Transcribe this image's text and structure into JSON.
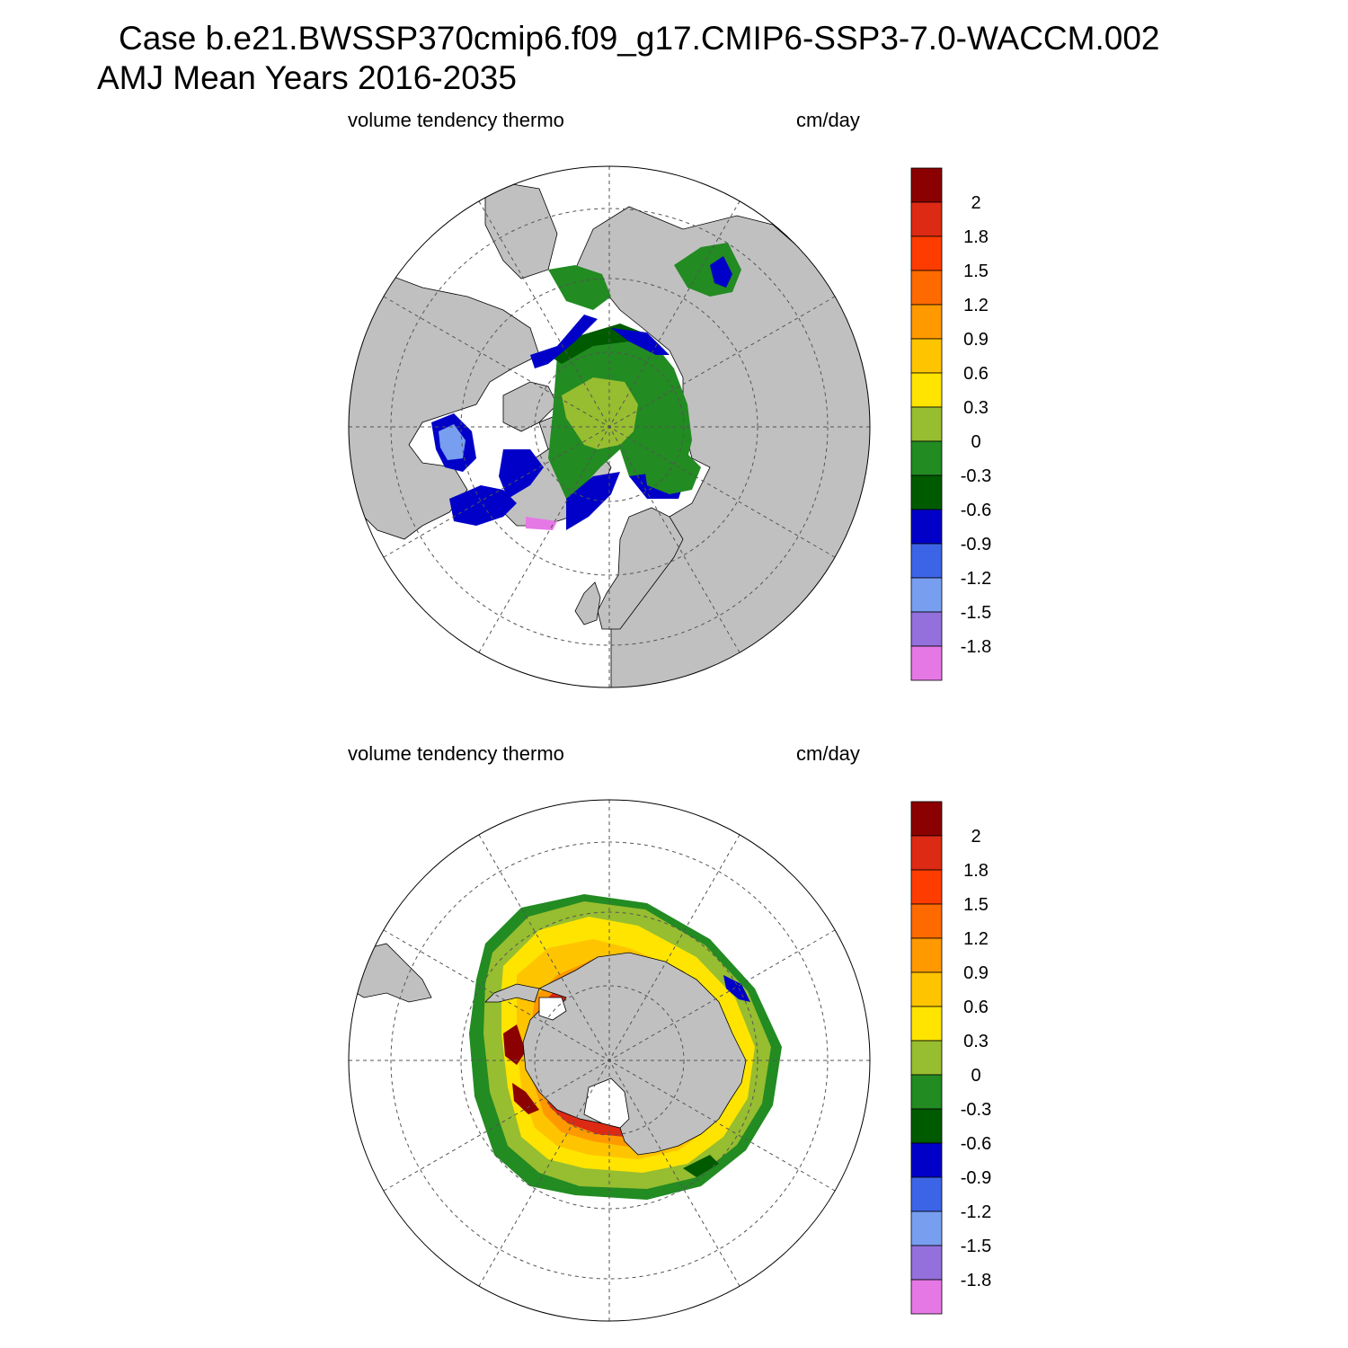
{
  "title": {
    "line1": "Case b.e21.BWSSP370cmip6.f09_g17.CMIP6-SSP3-7.0-WACCM.002",
    "line2": "AMJ Mean   Years 2016-2035"
  },
  "panels": [
    {
      "name": "north",
      "left_label": "volume tendency thermo",
      "right_label": "cm/day"
    },
    {
      "name": "south",
      "left_label": "volume tendency thermo",
      "right_label": "cm/day"
    }
  ],
  "colorbar": {
    "labels": [
      "2",
      "1.8",
      "1.5",
      "1.2",
      "0.9",
      "0.6",
      "0.3",
      "0",
      "-0.3",
      "-0.6",
      "-0.9",
      "-1.2",
      "-1.5",
      "-1.8"
    ],
    "colors": [
      "#8b0000",
      "#dd2a14",
      "#ff3c00",
      "#ff6a00",
      "#ff9900",
      "#ffc400",
      "#ffe400",
      "#97bd30",
      "#228b22",
      "#005a00",
      "#0000c8",
      "#3c64e6",
      "#789ef0",
      "#9370db",
      "#e678e6"
    ]
  },
  "colors": {
    "land": "#c0c0c0",
    "ocean": "#ffffff",
    "grid": "#555555"
  }
}
